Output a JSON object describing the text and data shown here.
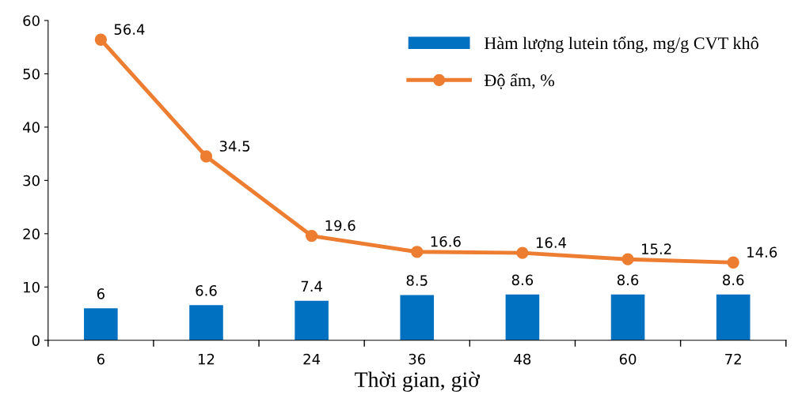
{
  "chart_data": {
    "type": "bar",
    "xlabel": "Thời gian, giờ",
    "categories": [
      "6",
      "12",
      "24",
      "36",
      "48",
      "60",
      "72"
    ],
    "series": [
      {
        "name": "Hàm lượng lutein tổng, mg/g CVT khô",
        "color": "#0070c0",
        "values": [
          6,
          6.6,
          7.4,
          8.5,
          8.6,
          8.6,
          8.6
        ]
      },
      {
        "name": "Độ ẩm, %",
        "type": "line",
        "color": "#ed7d31",
        "values": [
          56.4,
          34.5,
          19.6,
          16.6,
          16.4,
          15.2,
          14.6
        ]
      }
    ],
    "ylim": [
      0,
      60
    ],
    "yticks": [
      0,
      10,
      20,
      30,
      40,
      50,
      60
    ],
    "grid": false,
    "legend": "top right",
    "marker": "circle",
    "line_style": "solid",
    "data_labels": true
  }
}
